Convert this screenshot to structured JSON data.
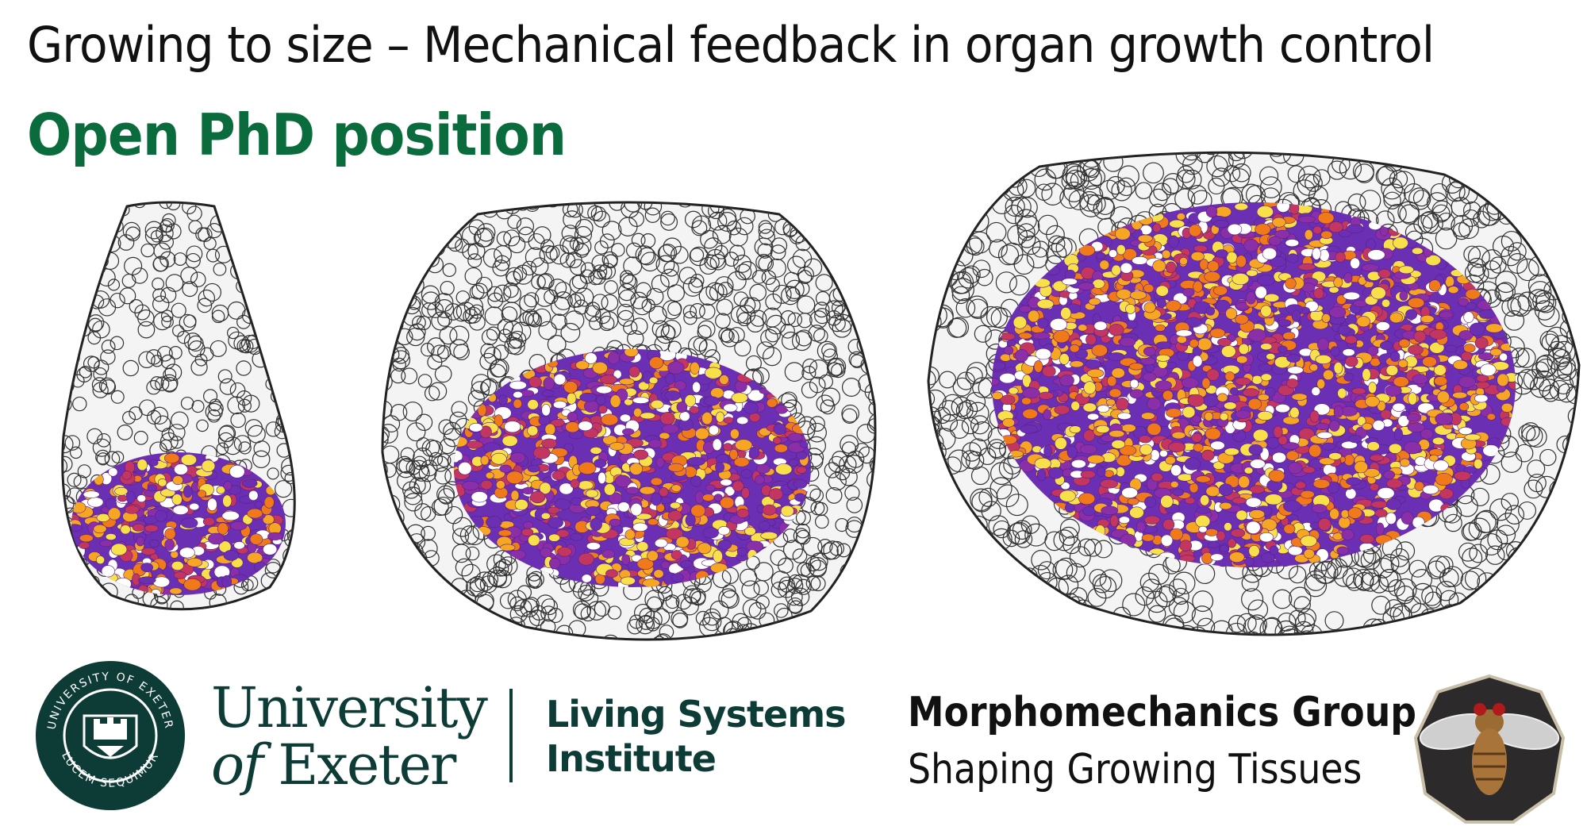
{
  "header": {
    "title": "Growing to size – Mechanical feedback in organ growth control",
    "subtitle": "Open PhD position"
  },
  "colors": {
    "title": "#111111",
    "subtitle": "#0a6b3d",
    "university": "#0d3b36",
    "cell_palette": [
      "#6b2fb3",
      "#8a2fa8",
      "#c2365f",
      "#f07a1a",
      "#f6a623",
      "#f8e04a",
      "#ffffff"
    ]
  },
  "figure": {
    "panels": [
      {
        "name": "early-disc-icon"
      },
      {
        "name": "mid-disc-icon"
      },
      {
        "name": "late-disc-icon"
      }
    ]
  },
  "university": {
    "seal_text_top": "UNIVERSITY OF EXETER",
    "seal_text_bottom": "LUCEM SEQUIMUR",
    "name_line1": "University",
    "name_of": "of",
    "name_exeter": "Exeter",
    "institute_line1": "Living Systems",
    "institute_line2": "Institute"
  },
  "group": {
    "name": "Morphomechanics Group",
    "tagline": "Shaping Growing Tissues"
  }
}
